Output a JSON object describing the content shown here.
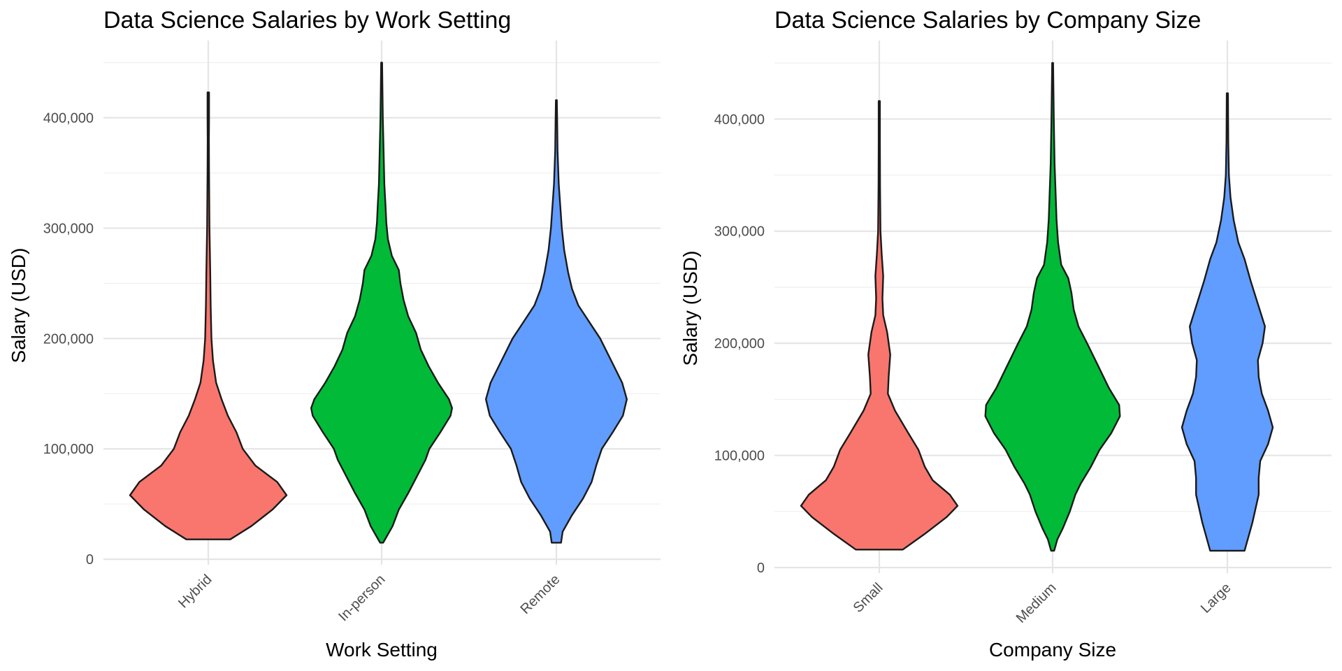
{
  "chart_data": [
    {
      "type": "violin",
      "title": "Data Science Salaries by Work Setting",
      "xlabel": "Work Setting",
      "ylabel": "Salary (USD)",
      "ylim": [
        -5000,
        470000
      ],
      "yticks": [
        0,
        100000,
        200000,
        300000,
        400000
      ],
      "ytick_labels": [
        "0",
        "100,000",
        "200,000",
        "300,000",
        "400,000"
      ],
      "grid": true,
      "legend": "none",
      "categories": [
        "Hybrid",
        "In-person",
        "Remote"
      ],
      "series": [
        {
          "category": "Hybrid",
          "color": "#F8766D",
          "min": 18000,
          "max": 423000,
          "density": [
            [
              18000,
              0.28
            ],
            [
              30000,
              0.55
            ],
            [
              45000,
              0.82
            ],
            [
              58000,
              1.0
            ],
            [
              70000,
              0.88
            ],
            [
              85000,
              0.6
            ],
            [
              100000,
              0.44
            ],
            [
              115000,
              0.36
            ],
            [
              130000,
              0.25
            ],
            [
              145000,
              0.17
            ],
            [
              160000,
              0.1
            ],
            [
              180000,
              0.06
            ],
            [
              200000,
              0.04
            ],
            [
              230000,
              0.03
            ],
            [
              260000,
              0.025
            ],
            [
              300000,
              0.015
            ],
            [
              350000,
              0.01
            ],
            [
              380000,
              0.008
            ],
            [
              400000,
              0.01
            ],
            [
              423000,
              0.01
            ]
          ]
        },
        {
          "category": "In-person",
          "color": "#00BA38",
          "min": 15000,
          "max": 450000,
          "density": [
            [
              15000,
              0.02
            ],
            [
              20000,
              0.06
            ],
            [
              30000,
              0.14
            ],
            [
              45000,
              0.22
            ],
            [
              60000,
              0.34
            ],
            [
              75000,
              0.45
            ],
            [
              90000,
              0.56
            ],
            [
              100000,
              0.61
            ],
            [
              115000,
              0.75
            ],
            [
              130000,
              0.88
            ],
            [
              137000,
              0.9
            ],
            [
              145000,
              0.86
            ],
            [
              160000,
              0.72
            ],
            [
              175000,
              0.6
            ],
            [
              190000,
              0.5
            ],
            [
              205000,
              0.44
            ],
            [
              220000,
              0.34
            ],
            [
              235000,
              0.28
            ],
            [
              250000,
              0.24
            ],
            [
              262000,
              0.22
            ],
            [
              275000,
              0.13
            ],
            [
              290000,
              0.08
            ],
            [
              305000,
              0.06
            ],
            [
              320000,
              0.05
            ],
            [
              340000,
              0.035
            ],
            [
              370000,
              0.025
            ],
            [
              400000,
              0.015
            ],
            [
              430000,
              0.01
            ],
            [
              450000,
              0.006
            ]
          ]
        },
        {
          "category": "Remote",
          "color": "#619CFF",
          "min": 15000,
          "max": 416000,
          "density": [
            [
              15000,
              0.06
            ],
            [
              25000,
              0.08
            ],
            [
              40000,
              0.2
            ],
            [
              55000,
              0.34
            ],
            [
              70000,
              0.45
            ],
            [
              85000,
              0.51
            ],
            [
              100000,
              0.58
            ],
            [
              115000,
              0.72
            ],
            [
              130000,
              0.85
            ],
            [
              145000,
              0.9
            ],
            [
              160000,
              0.84
            ],
            [
              180000,
              0.7
            ],
            [
              200000,
              0.56
            ],
            [
              215000,
              0.42
            ],
            [
              230000,
              0.28
            ],
            [
              245000,
              0.2
            ],
            [
              260000,
              0.15
            ],
            [
              280000,
              0.1
            ],
            [
              300000,
              0.07
            ],
            [
              320000,
              0.05
            ],
            [
              340000,
              0.03
            ],
            [
              370000,
              0.015
            ],
            [
              400000,
              0.01
            ],
            [
              416000,
              0.006
            ]
          ]
        }
      ]
    },
    {
      "type": "violin",
      "title": "Data Science Salaries by Company Size",
      "xlabel": "Company Size",
      "ylabel": "Salary (USD)",
      "ylim": [
        -5000,
        470000
      ],
      "yticks": [
        0,
        100000,
        200000,
        300000,
        400000
      ],
      "ytick_labels": [
        "0",
        "100,000",
        "200,000",
        "300,000",
        "400,000"
      ],
      "grid": true,
      "legend": "none",
      "categories": [
        "Small",
        "Medium",
        "Large"
      ],
      "series": [
        {
          "category": "Small",
          "color": "#F8766D",
          "min": 16000,
          "max": 416000,
          "density": [
            [
              16000,
              0.3
            ],
            [
              30000,
              0.58
            ],
            [
              45000,
              0.86
            ],
            [
              55000,
              1.0
            ],
            [
              65000,
              0.9
            ],
            [
              78000,
              0.68
            ],
            [
              90000,
              0.58
            ],
            [
              105000,
              0.5
            ],
            [
              120000,
              0.37
            ],
            [
              140000,
              0.2
            ],
            [
              155000,
              0.11
            ],
            [
              170000,
              0.12
            ],
            [
              190000,
              0.14
            ],
            [
              210000,
              0.1
            ],
            [
              225000,
              0.05
            ],
            [
              240000,
              0.04
            ],
            [
              260000,
              0.05
            ],
            [
              280000,
              0.03
            ],
            [
              300000,
              0.015
            ],
            [
              340000,
              0.01
            ],
            [
              380000,
              0.008
            ],
            [
              416000,
              0.008
            ]
          ]
        },
        {
          "category": "Medium",
          "color": "#00BA38",
          "min": 15000,
          "max": 450000,
          "density": [
            [
              15000,
              0.02
            ],
            [
              25000,
              0.06
            ],
            [
              35000,
              0.13
            ],
            [
              50000,
              0.22
            ],
            [
              65000,
              0.29
            ],
            [
              75000,
              0.36
            ],
            [
              90000,
              0.49
            ],
            [
              105000,
              0.6
            ],
            [
              120000,
              0.75
            ],
            [
              135000,
              0.86
            ],
            [
              145000,
              0.85
            ],
            [
              160000,
              0.72
            ],
            [
              180000,
              0.58
            ],
            [
              200000,
              0.44
            ],
            [
              215000,
              0.33
            ],
            [
              230000,
              0.27
            ],
            [
              245000,
              0.24
            ],
            [
              258000,
              0.2
            ],
            [
              270000,
              0.11
            ],
            [
              290000,
              0.07
            ],
            [
              310000,
              0.05
            ],
            [
              330000,
              0.04
            ],
            [
              360000,
              0.025
            ],
            [
              400000,
              0.015
            ],
            [
              450000,
              0.006
            ]
          ]
        },
        {
          "category": "Large",
          "color": "#619CFF",
          "min": 15000,
          "max": 423000,
          "density": [
            [
              15000,
              0.22
            ],
            [
              40000,
              0.32
            ],
            [
              65000,
              0.4
            ],
            [
              80000,
              0.4
            ],
            [
              95000,
              0.42
            ],
            [
              110000,
              0.52
            ],
            [
              125000,
              0.58
            ],
            [
              140000,
              0.52
            ],
            [
              155000,
              0.44
            ],
            [
              170000,
              0.4
            ],
            [
              185000,
              0.39
            ],
            [
              200000,
              0.45
            ],
            [
              215000,
              0.48
            ],
            [
              235000,
              0.39
            ],
            [
              255000,
              0.3
            ],
            [
              275000,
              0.22
            ],
            [
              290000,
              0.14
            ],
            [
              310000,
              0.08
            ],
            [
              330000,
              0.04
            ],
            [
              350000,
              0.02
            ],
            [
              380000,
              0.012
            ],
            [
              400000,
              0.01
            ],
            [
              423000,
              0.008
            ]
          ]
        }
      ]
    }
  ]
}
